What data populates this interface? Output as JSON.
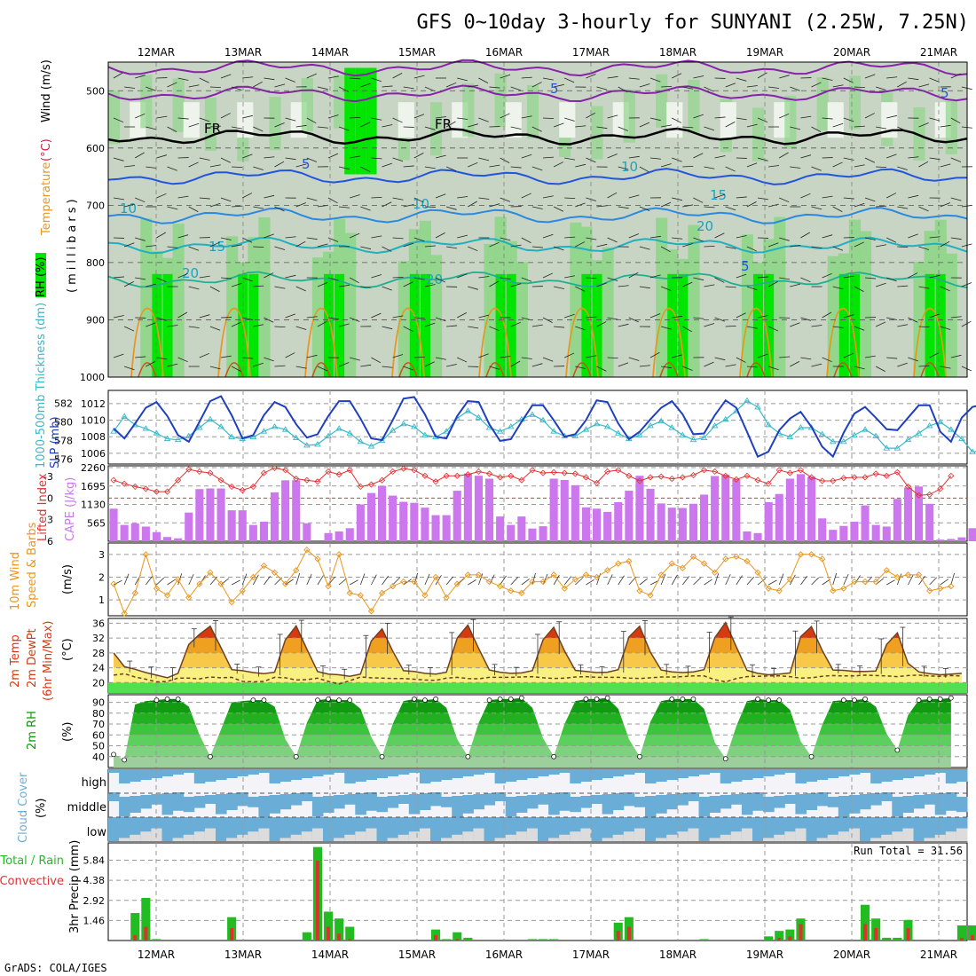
{
  "title": "GFS 0~10day 3-hourly for SUNYANI (2.25W, 7.25N)",
  "footer": "GrADS: COLA/IGES",
  "date_labels": [
    "12MAR",
    "13MAR",
    "14MAR",
    "15MAR",
    "16MAR",
    "17MAR",
    "18MAR",
    "19MAR",
    "20MAR",
    "21MAR"
  ],
  "colors": {
    "rh_light": "#c8d4c4",
    "rh_mid": "#8fd68a",
    "rh_high": "#00e600",
    "slp": "#1f3fbf",
    "thickness": "#3ab8c8",
    "cape": "#cc77ee",
    "li": "#e03030",
    "wind": "#e8961c",
    "temp_hot": "#d83a10",
    "temp_warm": "#f0a020",
    "temp_mild": "#f8f080",
    "temp_cool": "#50e050",
    "rh_green": "#00a000",
    "cloud": "#6aaed8",
    "rain_total": "#22bb22",
    "rain_conv": "#e03030"
  },
  "panel_labels": {
    "upper": {
      "rh": "RH (%)",
      "temperature": "Temperature",
      "temp_unit": "(°C)",
      "wind": "Wind (m/s)",
      "millibars": "(millibars)"
    },
    "slp": {
      "thickness": "1000-500mb Thickness (dm)",
      "slp": "SLP (mb)"
    },
    "cape": {
      "li": "Lifted Index",
      "cape": "CAPE (J/kg)"
    },
    "wind10m": {
      "line1": "10m Wind",
      "line2": "Speed & Barbs",
      "unit": "(m/s)"
    },
    "temp2m": {
      "line1": "2m Temp",
      "line2": "2m DewPt",
      "line3": "(6hr Min/Max)",
      "unit": "(°C)"
    },
    "rh2m": {
      "line1": "2m RH",
      "unit": "(%)"
    },
    "cloud": {
      "line1": "Cloud Cover",
      "unit": "(%)",
      "levels": [
        "high",
        "middle",
        "low"
      ]
    },
    "precip": {
      "line1": "Total / Rain",
      "line2": "Convective",
      "line3": "3hr Precip (mm)",
      "run_total": "Run Total = 31.56"
    }
  },
  "chart_data": [
    {
      "type": "heatmap",
      "title": "Upper-air RH (%), Temperature (°C) isotherms, Wind (m/s)",
      "ylabel": "millibars",
      "yticks": [
        500,
        600,
        700,
        800,
        900,
        1000
      ],
      "ylim": [
        1000,
        450
      ],
      "isotherm_labels": [
        "5",
        "FR",
        "FR",
        "5",
        "10",
        "10",
        "10",
        "15",
        "15",
        "20",
        "20",
        "20",
        "5",
        "5"
      ]
    },
    {
      "type": "line",
      "title": "SLP (mb) and 1000-500mb Thickness (dm)",
      "yticks_slp": [
        1006,
        1008,
        1010,
        1012
      ],
      "yticks_thk": [
        576,
        578,
        580,
        582
      ],
      "series": [
        {
          "name": "SLP (mb)",
          "values": [
            1009,
            1007.8,
            1009.6,
            1011.5,
            1012.2,
            1010.5,
            1008.2,
            1007.4,
            1009.8,
            1012.3,
            1012.9,
            1010.6,
            1007.8,
            1008.2,
            1010.6,
            1012.2,
            1011.6,
            1009.5,
            1007.9,
            1008.3,
            1010.5,
            1012.3,
            1012.3,
            1010.2,
            1007.8,
            1007.6,
            1010,
            1012.6,
            1012.8,
            1010.7,
            1008,
            1007.8,
            1010.5,
            1012.3,
            1012.2,
            1009.5,
            1007.5,
            1007.7,
            1009.8,
            1011.8,
            1011.8,
            1010,
            1008,
            1008.3,
            1010,
            1012.4,
            1012.2,
            1009.6,
            1007.7,
            1008.6,
            1010.1,
            1011.5,
            1012.3,
            1010.7,
            1008.3,
            1008.4,
            1010.6,
            1012.4,
            1011.5,
            1008.6,
            1005.6,
            1006.2,
            1008.8,
            1010.2,
            1011,
            1009.2,
            1006.8,
            1005.6,
            1008.5,
            1010.8,
            1011.6,
            1010.3,
            1008.9,
            1008.8,
            1010.3,
            1011.8,
            1011.8,
            1008.6,
            1007.4,
            1010.3,
            1011.6,
            1011.9
          ]
        },
        {
          "name": "1000-500mb Thickness (dm)",
          "values": [
            579,
            580.6,
            579.7,
            579.3,
            578.8,
            578.2,
            578.1,
            578.5,
            579.4,
            580.3,
            579.5,
            578.4,
            578.2,
            578.4,
            579,
            579.5,
            579.2,
            578.3,
            577.5,
            577.6,
            578.5,
            579.3,
            578.8,
            577.9,
            577.4,
            578,
            579.1,
            579.8,
            579.5,
            578.6,
            578.4,
            579,
            580.4,
            581.2,
            580.5,
            579.4,
            579,
            579.5,
            580.3,
            580.8,
            580.2,
            579,
            578.5,
            578.5,
            579.2,
            579.8,
            579.5,
            578.8,
            578.2,
            578.6,
            579.6,
            580.1,
            579.4,
            578.6,
            578.1,
            578.3,
            579.6,
            580.3,
            581.2,
            582.3,
            581.6,
            579.7,
            578.8,
            578.4,
            579.4,
            579.4,
            578.7,
            577.9,
            577.9,
            578.6,
            579.2,
            578.5,
            577.2,
            577.2,
            578.1,
            578.8,
            579.6,
            580,
            579.2,
            578.2,
            576.8,
            576.9
          ]
        }
      ]
    },
    {
      "type": "bar",
      "title": "CAPE (J/kg) and Lifted Index",
      "yticks_cape": [
        565,
        1130,
        1695,
        2260
      ],
      "yticks_li": [
        -3,
        0,
        3,
        6
      ],
      "series": [
        {
          "name": "CAPE (J/kg)",
          "values": [
            1000,
            500,
            550,
            450,
            280,
            130,
            90,
            880,
            1600,
            1620,
            1620,
            950,
            950,
            500,
            600,
            1500,
            1870,
            1870,
            550,
            0,
            250,
            300,
            400,
            1130,
            1480,
            1700,
            1400,
            1210,
            1180,
            1030,
            800,
            800,
            1550,
            2080,
            2010,
            1920,
            760,
            500,
            760,
            390,
            460,
            1920,
            1880,
            1720,
            1040,
            1000,
            900,
            1200,
            1550,
            2010,
            1610,
            1160,
            1030,
            1020,
            1150,
            1430,
            2000,
            2040,
            1900,
            300,
            250,
            1200,
            1450,
            1920,
            2060,
            1980,
            700,
            350,
            470,
            600,
            1100,
            500,
            450,
            1300,
            1650,
            1680,
            1150,
            50,
            70,
            120,
            400
          ]
        },
        {
          "name": "Lifted Index",
          "values": [
            -2.5,
            -2,
            -1.6,
            -1.3,
            -0.9,
            -0.9,
            -2.5,
            -4,
            -3.7,
            -3.5,
            -2.5,
            -1.6,
            -1.1,
            -1.6,
            -3.5,
            -4.2,
            -3.9,
            -2.7,
            -2.5,
            -2.3,
            -3.7,
            -3.3,
            -3.9,
            -1.6,
            -1.9,
            -2.5,
            -3.7,
            -4.1,
            -3.9,
            -3.1,
            -2.3,
            -3.1,
            -3.1,
            -3.3,
            -3.7,
            -3.4,
            -2.9,
            -3.1,
            -2.5,
            -3.9,
            -3.5,
            -3.6,
            -3.5,
            -3.4,
            -2.9,
            -2.1,
            -3.7,
            -3.9,
            -3.1,
            -2.4,
            -2.9,
            -3,
            -2.7,
            -2.9,
            -3.2,
            -3.9,
            -3.7,
            -3.1,
            -2.6,
            -3.1,
            -2.5,
            -2,
            -3.9,
            -3.5,
            -3.9,
            -2.9,
            -2.4,
            -2.4,
            -2.8,
            -2.9,
            -2.9,
            -3.4,
            -3.1,
            -3.6,
            -1.6,
            -0.4,
            -0.5,
            -1.3,
            -3.1
          ]
        }
      ]
    },
    {
      "type": "line",
      "title": "10m Wind Speed & Barbs (m/s)",
      "yticks": [
        1,
        2,
        3
      ],
      "series": [
        {
          "name": "10m Wind Speed (m/s)",
          "values": [
            1.7,
            0.4,
            1.3,
            3,
            1.5,
            1.2,
            1.9,
            1.1,
            1.7,
            2.2,
            1.7,
            0.9,
            1.4,
            2,
            2.5,
            2.2,
            1.7,
            2.3,
            3.2,
            2.8,
            1.6,
            3,
            1.3,
            1.2,
            0.5,
            1.3,
            1.6,
            1.8,
            1.8,
            1.2,
            2,
            1.1,
            1.7,
            2.1,
            2.1,
            1.8,
            1.6,
            1.4,
            1.3,
            1.8,
            1.8,
            2.1,
            1.5,
            1.9,
            2.1,
            2,
            2.3,
            2.6,
            2.7,
            1.4,
            1.2,
            2.1,
            2.6,
            2.4,
            2.9,
            2.6,
            2.2,
            2.8,
            2.9,
            2.7,
            2.2,
            1.5,
            1.4,
            1.9,
            3,
            3,
            2.8,
            1.4,
            1.5,
            1.8,
            1.8,
            1.8,
            2.3,
            2,
            2.1,
            2.1,
            1.4,
            1.5,
            1.6
          ]
        }
      ]
    },
    {
      "type": "area",
      "title": "2m Temp (°C), 2m DewPt, 6hr Min/Max",
      "yticks": [
        20,
        24,
        28,
        32,
        36
      ],
      "series": [
        {
          "name": "2m Temp (°C)",
          "values": [
            28,
            24.3,
            23.6,
            22.7,
            22,
            21.3,
            22.5,
            30.3,
            33,
            35.2,
            29.4,
            23.5,
            23.2,
            22.7,
            22.4,
            22.8,
            31.5,
            35.3,
            29,
            23,
            22.3,
            22.1,
            21.7,
            22.3,
            31.2,
            34.5,
            28.5,
            23.2,
            23,
            22.5,
            22.3,
            22.8,
            32,
            35.5,
            29.2,
            23.4,
            22.8,
            22.5,
            22.6,
            23.2,
            31.5,
            34.9,
            28.5,
            23.3,
            23,
            22.7,
            22.8,
            23.5,
            32.3,
            35.2,
            28.2,
            23.4,
            22.9,
            22.7,
            22.9,
            23.5,
            32.1,
            36.2,
            29.6,
            23.3,
            22.5,
            22.1,
            22.3,
            22.6,
            32.4,
            35.1,
            28.7,
            23.4,
            23.3,
            23,
            23,
            23.1,
            30.3,
            33.4,
            25.2,
            22.9,
            22.4,
            22.1,
            22.3,
            22.5
          ]
        },
        {
          "name": "2m DewPt (°C)",
          "values": [
            22,
            22.4,
            21.5,
            20.9,
            20.2,
            20.3,
            21.2,
            21.2,
            21,
            21.5,
            21.3,
            21.4,
            20.3,
            20.2,
            20.3,
            21.4,
            21.3,
            20.7,
            20.8,
            21.2,
            20.3,
            19.6,
            20.5,
            21.5,
            21.3,
            21.2,
            21.1,
            21.1,
            20.9,
            20.7,
            20.6,
            21.2,
            21.4,
            21.1,
            21,
            21.4,
            21.4,
            21.4,
            21.5,
            21.6,
            21.3,
            21.1,
            21.2,
            21.5,
            21.6,
            21.4,
            21.4,
            21.4,
            21.2,
            21.1,
            21.3,
            21.5,
            21.5,
            21.6,
            21.8,
            21.8,
            20.8,
            20.2,
            21.1,
            21.6,
            21.7,
            21.8,
            21.8,
            21.6,
            21.2,
            21.3,
            21.7,
            21.9,
            21.8,
            21.8,
            22,
            21.9,
            21.8,
            21.6,
            21.9,
            22,
            21.8,
            21.7,
            21.9,
            21.8
          ]
        }
      ]
    },
    {
      "type": "area",
      "title": "2m RH (%)",
      "yticks": [
        40,
        50,
        60,
        70,
        80,
        90
      ],
      "series": [
        {
          "name": "2m RH (%)",
          "values": [
            42,
            37,
            88,
            91,
            92,
            93,
            93,
            86,
            60,
            40,
            65,
            90,
            91,
            92,
            92,
            86,
            56,
            40,
            71,
            92,
            93,
            92,
            92,
            84,
            58,
            40,
            70,
            91,
            93,
            92,
            93,
            85,
            56,
            40,
            71,
            92,
            93,
            93,
            94,
            85,
            57,
            40,
            70,
            91,
            93,
            93,
            94,
            84,
            56,
            40,
            72,
            91,
            93,
            93,
            93,
            84,
            53,
            38,
            68,
            91,
            93,
            92,
            92,
            83,
            54,
            40,
            69,
            91,
            92,
            92,
            93,
            86,
            61,
            46,
            78,
            92,
            93,
            93,
            94
          ]
        }
      ]
    },
    {
      "type": "table",
      "title": "Cloud Cover (%)",
      "rows": [
        "high",
        "middle",
        "low"
      ]
    },
    {
      "type": "bar",
      "title": "3hr Precip (mm)",
      "yticks": [
        1.46,
        2.92,
        4.38,
        5.84
      ],
      "run_total": 31.56,
      "series": [
        {
          "name": "Total / Rain",
          "values": [
            0,
            0,
            2,
            3.1,
            0.1,
            0,
            0,
            0,
            0,
            0,
            0,
            1.7,
            0,
            0,
            0,
            0,
            0,
            0,
            0.6,
            6.8,
            2.1,
            1.6,
            1,
            0,
            0,
            0,
            0,
            0,
            0,
            0,
            0.8,
            0.1,
            0.6,
            0.2,
            0,
            0,
            0,
            0,
            0,
            0.1,
            0.1,
            0.1,
            0,
            0,
            0,
            0,
            0,
            1.3,
            1.7,
            0,
            0,
            0,
            0,
            0,
            0,
            0.1,
            0,
            0,
            0,
            0,
            0,
            0.3,
            0.7,
            0.8,
            1.6,
            0,
            0,
            0,
            0,
            0,
            2.6,
            1.6,
            0.2,
            0.2,
            1.5,
            0,
            0,
            0,
            0,
            1.1,
            1.1,
            0.1,
            0.2
          ]
        },
        {
          "name": "Convective",
          "values": [
            0,
            0,
            0.4,
            1,
            0,
            0,
            0,
            0,
            0,
            0,
            0,
            0.9,
            0,
            0,
            0,
            0,
            0,
            0,
            0,
            5.8,
            1,
            0.5,
            0.1,
            0,
            0,
            0,
            0,
            0,
            0,
            0,
            0.4,
            0,
            0.1,
            0,
            0,
            0,
            0,
            0,
            0,
            0,
            0,
            0,
            0,
            0,
            0,
            0,
            0,
            0.7,
            1,
            0,
            0,
            0,
            0,
            0,
            0,
            0,
            0,
            0,
            0,
            0,
            0,
            0,
            0.2,
            0.3,
            1.2,
            0,
            0,
            0,
            0,
            0,
            1.2,
            0.9,
            0,
            0,
            0.9,
            0,
            0,
            0,
            0,
            0.2,
            0.4,
            0,
            0
          ]
        }
      ]
    }
  ]
}
